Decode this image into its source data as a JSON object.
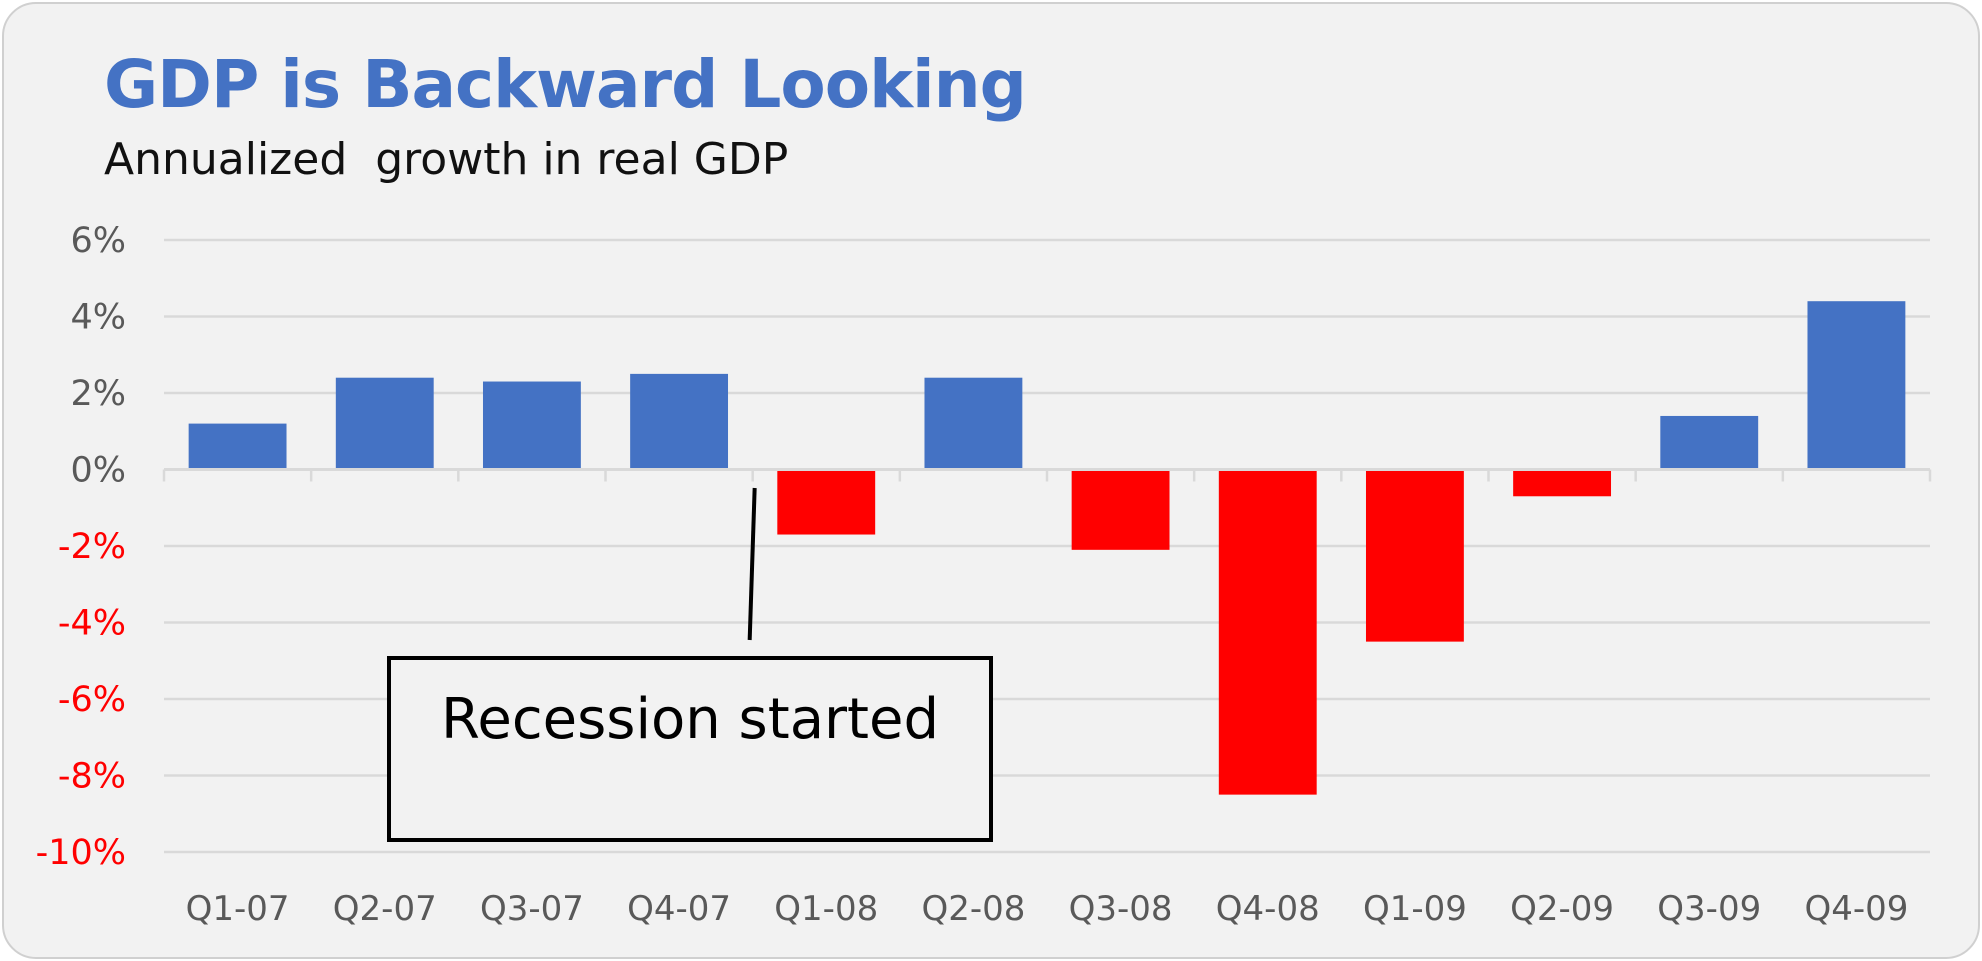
{
  "chart_data": {
    "type": "bar",
    "title": "GDP is Backward Looking",
    "subtitle": "Annualized  growth in real GDP",
    "categories": [
      "Q1-07",
      "Q2-07",
      "Q3-07",
      "Q4-07",
      "Q1-08",
      "Q2-08",
      "Q3-08",
      "Q4-08",
      "Q1-09",
      "Q2-09",
      "Q3-09",
      "Q4-09"
    ],
    "values": [
      1.2,
      2.4,
      2.3,
      2.5,
      -1.7,
      2.4,
      -2.1,
      -8.5,
      -4.5,
      -0.7,
      1.4,
      4.4
    ],
    "ylim": [
      -10,
      6
    ],
    "yticks": [
      6,
      4,
      2,
      0,
      -2,
      -4,
      -6,
      -8,
      -10
    ],
    "ytick_labels": [
      "6%",
      "4%",
      "2%",
      "0%",
      "-2%",
      "-4%",
      "-6%",
      "-8%",
      "-10%"
    ],
    "grid": true,
    "colors": {
      "positive": "#4472c4",
      "negative": "#ff0000",
      "positive_tick_label": "#595959",
      "negative_tick_label": "#ff0000",
      "title": "#4472c4",
      "gridline": "#d9d9d9"
    },
    "annotations": [
      {
        "text": "Recession started",
        "points_to_category": "Q1-08"
      }
    ]
  }
}
